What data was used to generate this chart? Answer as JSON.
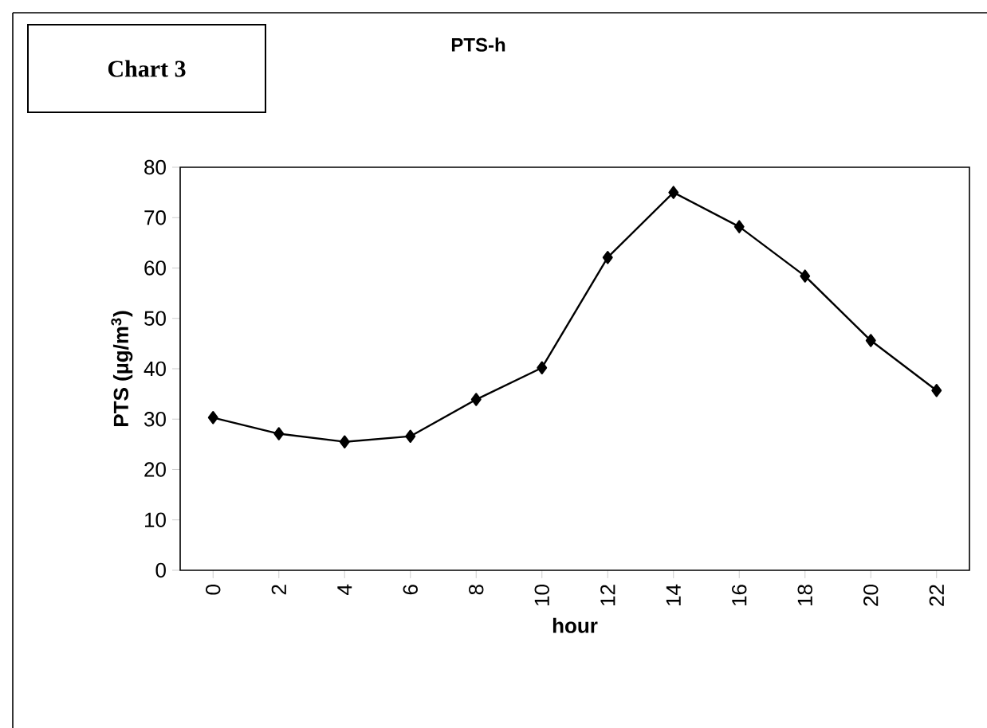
{
  "chart_data": {
    "type": "line",
    "title": "PTS-h",
    "xlabel": "hour",
    "ylabel": "PTS (µg/m$^{3}$)",
    "annotations": [
      "Chart 3"
    ],
    "categories": [
      "0",
      "2",
      "4",
      "6",
      "8",
      "10",
      "12",
      "14",
      "16",
      "18",
      "20",
      "22"
    ],
    "series": [
      {
        "color": "#000000",
        "values": [
          30.3,
          27.1,
          25.5,
          26.6,
          33.9,
          40.2,
          62.1,
          75.0,
          68.2,
          58.4,
          45.6,
          35.7
        ]
      }
    ],
    "ylim": [
      0,
      80
    ],
    "yticks": [
      0,
      10,
      20,
      30,
      40,
      50,
      60,
      70,
      80
    ],
    "marker": "diamond",
    "line_style": "solid"
  }
}
